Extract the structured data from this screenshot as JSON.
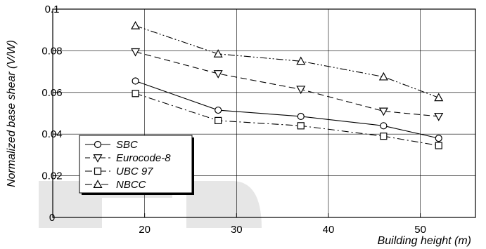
{
  "chart_data": {
    "type": "line",
    "title": "",
    "xlabel": "Building height (m)",
    "ylabel": "Normalized base shear (V/W)",
    "xlim": [
      10,
      56
    ],
    "ylim": [
      0,
      0.1
    ],
    "xticks": [
      20,
      30,
      40,
      50
    ],
    "yticks": [
      0,
      0.02,
      0.04,
      0.06,
      0.08,
      0.1
    ],
    "xtick_labels": [
      "20",
      "30",
      "40",
      "50"
    ],
    "ytick_labels": [
      "0",
      "0.02",
      "0.04",
      "0.06",
      "0.08",
      "0.1"
    ],
    "grid": true,
    "legend_position": "bottom-left",
    "series": [
      {
        "name": "SBC",
        "marker": "circle",
        "dash": "solid",
        "x": [
          19,
          28,
          37,
          46,
          52
        ],
        "y": [
          0.0655,
          0.0515,
          0.0485,
          0.044,
          0.038
        ]
      },
      {
        "name": "Eurocode-8",
        "marker": "triangle-down",
        "dash": "dashed",
        "x": [
          19,
          28,
          37,
          46,
          52
        ],
        "y": [
          0.0795,
          0.069,
          0.0615,
          0.051,
          0.0485
        ]
      },
      {
        "name": "UBC 97",
        "marker": "square",
        "dash": "dash-dot",
        "x": [
          19,
          28,
          37,
          46,
          52
        ],
        "y": [
          0.0595,
          0.0465,
          0.044,
          0.039,
          0.0345
        ]
      },
      {
        "name": "NBCC",
        "marker": "triangle-up",
        "dash": "dash-dot-dot",
        "x": [
          19,
          28,
          37,
          46,
          52
        ],
        "y": [
          0.092,
          0.0785,
          0.075,
          0.0675,
          0.0575
        ]
      }
    ]
  }
}
